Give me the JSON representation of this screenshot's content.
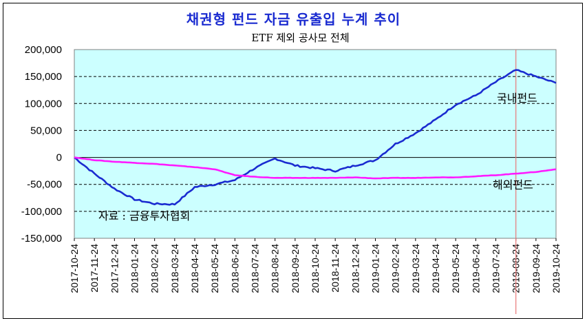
{
  "chart_data": {
    "type": "line",
    "title": "채권형 펀드 자금 유출입 누계 추이",
    "subtitle": "ETF 제외 공사모 전체",
    "ylim": [
      -150000,
      200000
    ],
    "yticks": [
      "200,000",
      "150,000",
      "100,000",
      "50,000",
      "0",
      "-50,000",
      "-100,000",
      "-150,000"
    ],
    "ytick_values": [
      200000,
      150000,
      100000,
      50000,
      0,
      -50000,
      -100000,
      -150000
    ],
    "categories": [
      "2017-10-24",
      "2017-11-24",
      "2017-12-24",
      "2018-01-24",
      "2018-02-24",
      "2018-03-24",
      "2018-04-24",
      "2018-05-24",
      "2018-06-24",
      "2018-07-24",
      "2018-08-24",
      "2018-09-24",
      "2018-10-24",
      "2018-11-24",
      "2018-12-24",
      "2019-01-24",
      "2019-02-24",
      "2019-03-24",
      "2019-04-24",
      "2019-05-24",
      "2019-06-24",
      "2019-07-24",
      "2019-08-24",
      "2019-09-24",
      "2019-10-24"
    ],
    "grid": true,
    "marker_category": "2019-08-24",
    "series": [
      {
        "name": "국내펀드",
        "color": "#1a2bd0",
        "values": [
          0,
          -30000,
          -58000,
          -78000,
          -86000,
          -87000,
          -55000,
          -50000,
          -42000,
          -20000,
          -2000,
          -15000,
          -20000,
          -25000,
          -15000,
          -5000,
          25000,
          45000,
          70000,
          98000,
          115000,
          140000,
          162000,
          150000,
          138000
        ]
      },
      {
        "name": "해외펀드",
        "color": "#ff1aff",
        "values": [
          0,
          -5000,
          -8000,
          -10000,
          -12000,
          -15000,
          -18000,
          -22000,
          -33000,
          -36000,
          -38000,
          -38000,
          -38000,
          -38000,
          -37000,
          -39000,
          -38000,
          -38000,
          -37000,
          -37000,
          -35000,
          -33000,
          -30000,
          -27000,
          -22000
        ]
      }
    ],
    "annotations": {
      "domestic": "국내펀드",
      "overseas": "해외펀드",
      "source": "자료 : 금융투자협회"
    },
    "colors": {
      "plot_background": "#ccffff",
      "marker_line": "#e87878"
    }
  }
}
